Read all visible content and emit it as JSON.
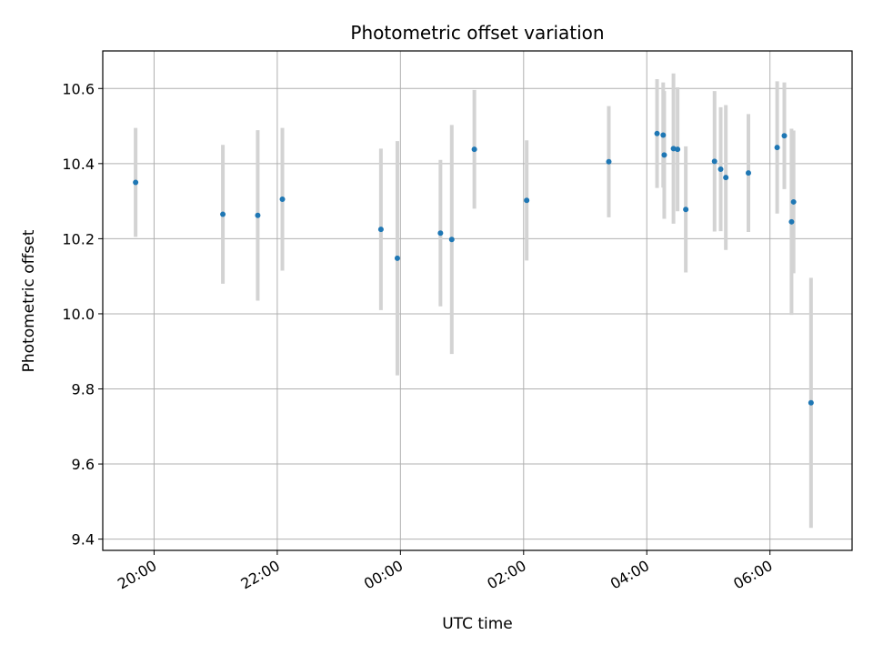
{
  "chart_data": {
    "type": "scatter",
    "title": "Photometric offset variation",
    "xlabel": "UTC time",
    "ylabel": "Photometric offset",
    "x_is_time": true,
    "x_ticks": [
      "20:00",
      "22:00",
      "00:00",
      "02:00",
      "04:00",
      "06:00"
    ],
    "y_ticks": [
      "9.4",
      "9.6",
      "9.8",
      "10.0",
      "10.2",
      "10.4",
      "10.6"
    ],
    "xlim": [
      "19:10",
      "07:20"
    ],
    "ylim": [
      9.37,
      10.7
    ],
    "grid": true,
    "colors": {
      "point": "#1f77b4",
      "errorbar": "#d3d3d3",
      "grid": "#b0b0b0"
    },
    "series": [
      {
        "x": [
          "19:42",
          "21:07",
          "21:41",
          "22:05",
          "23:41",
          "23:57",
          "00:39",
          "00:50",
          "01:12",
          "02:03",
          "03:23",
          "04:10",
          "04:16",
          "04:17",
          "04:26",
          "04:30",
          "04:38",
          "05:06",
          "05:12",
          "05:17",
          "05:39",
          "06:07",
          "06:14",
          "06:21",
          "06:23",
          "06:40"
        ],
        "y": [
          10.35,
          10.265,
          10.262,
          10.305,
          10.225,
          10.148,
          10.215,
          10.198,
          10.438,
          10.302,
          10.405,
          10.48,
          10.476,
          10.423,
          10.44,
          10.438,
          10.278,
          10.406,
          10.385,
          10.363,
          10.375,
          10.443,
          10.474,
          10.245,
          10.298,
          9.763
        ],
        "yerr": [
          0.145,
          0.185,
          0.227,
          0.19,
          0.215,
          0.312,
          0.195,
          0.305,
          0.158,
          0.16,
          0.148,
          0.145,
          0.14,
          0.17,
          0.2,
          0.165,
          0.168,
          0.187,
          0.165,
          0.193,
          0.157,
          0.176,
          0.142,
          0.248,
          0.19,
          0.333
        ]
      }
    ]
  }
}
